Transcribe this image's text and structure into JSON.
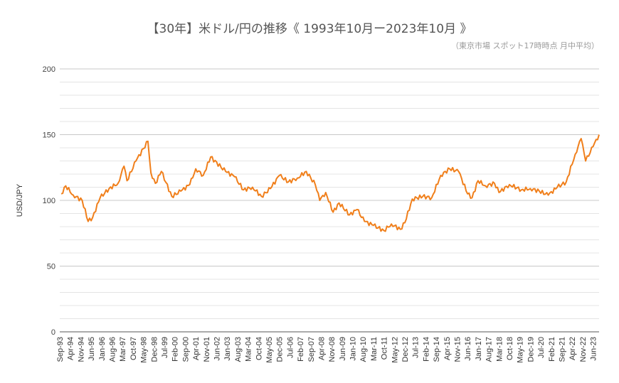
{
  "title": "【30年】米ドル/円の推移《 1993年10月ー2023年10月 》",
  "subtitle": "（東京市場 スポット17時時点 月中平均）",
  "chart_data": {
    "type": "line",
    "title": "【30年】米ドル/円の推移《 1993年10月ー2023年10月 》",
    "subtitle": "（東京市場 スポット17時時点 月中平均）",
    "xlabel": "",
    "ylabel": "USD/JPY",
    "ylim": [
      0,
      200
    ],
    "yticks": [
      0,
      50,
      100,
      150,
      200
    ],
    "minor_grid_step": 10,
    "grid": true,
    "legend": "none",
    "line_color": "#f07f1b",
    "x_tick_labels": [
      "Sep-93",
      "Apr-94",
      "Nov-94",
      "Jun-95",
      "Jan-96",
      "Aug-96",
      "Mar-97",
      "Oct-97",
      "May-98",
      "Dec-98",
      "Jul-99",
      "Feb-00",
      "Sep-00",
      "Apr-01",
      "Nov-01",
      "Jun-02",
      "Jan-03",
      "Aug-03",
      "Mar-04",
      "Oct-04",
      "May-05",
      "Dec-05",
      "Jul-06",
      "Feb-07",
      "Sep-07",
      "Apr-08",
      "Nov-08",
      "Jun-09",
      "Jan-10",
      "Aug-10",
      "Mar-11",
      "Oct-11",
      "May-12",
      "Dec-12",
      "Jul-13",
      "Feb-14",
      "Sep-14",
      "Apr-15",
      "Nov-15",
      "Jun-16",
      "Jan-17",
      "Aug-17",
      "Mar-18",
      "Oct-18",
      "May-19",
      "Dec-19",
      "Jul-20",
      "Feb-21",
      "Sep-21",
      "Apr-22",
      "Nov-22",
      "Jun-23"
    ],
    "series": [
      {
        "name": "USD/JPY",
        "yearly_points": [
          {
            "x": "Oct-93",
            "y": 105
          },
          {
            "x": "Jan-94",
            "y": 111
          },
          {
            "x": "Jun-94",
            "y": 104
          },
          {
            "x": "Dec-94",
            "y": 100
          },
          {
            "x": "Apr-95",
            "y": 84
          },
          {
            "x": "Jul-95",
            "y": 87
          },
          {
            "x": "Dec-95",
            "y": 102
          },
          {
            "x": "Jun-96",
            "y": 109
          },
          {
            "x": "Dec-96",
            "y": 113
          },
          {
            "x": "Apr-97",
            "y": 126
          },
          {
            "x": "Jun-97",
            "y": 115
          },
          {
            "x": "Dec-97",
            "y": 130
          },
          {
            "x": "Aug-98",
            "y": 145
          },
          {
            "x": "Oct-98",
            "y": 121
          },
          {
            "x": "Jan-99",
            "y": 113
          },
          {
            "x": "May-99",
            "y": 122
          },
          {
            "x": "Dec-99",
            "y": 103
          },
          {
            "x": "Jun-00",
            "y": 107
          },
          {
            "x": "Dec-00",
            "y": 112
          },
          {
            "x": "Apr-01",
            "y": 124
          },
          {
            "x": "Sep-01",
            "y": 119
          },
          {
            "x": "Feb-02",
            "y": 133
          },
          {
            "x": "Dec-02",
            "y": 122
          },
          {
            "x": "Jun-03",
            "y": 118
          },
          {
            "x": "Dec-03",
            "y": 108
          },
          {
            "x": "Jun-04",
            "y": 110
          },
          {
            "x": "Dec-04",
            "y": 103
          },
          {
            "x": "Jun-05",
            "y": 109
          },
          {
            "x": "Dec-05",
            "y": 119
          },
          {
            "x": "Jun-06",
            "y": 114
          },
          {
            "x": "Dec-06",
            "y": 117
          },
          {
            "x": "Jun-07",
            "y": 122
          },
          {
            "x": "Dec-07",
            "y": 112
          },
          {
            "x": "Mar-08",
            "y": 100
          },
          {
            "x": "Jul-08",
            "y": 106
          },
          {
            "x": "Dec-08",
            "y": 91
          },
          {
            "x": "Apr-09",
            "y": 98
          },
          {
            "x": "Nov-09",
            "y": 89
          },
          {
            "x": "Apr-10",
            "y": 93
          },
          {
            "x": "Sep-10",
            "y": 84
          },
          {
            "x": "Mar-11",
            "y": 81
          },
          {
            "x": "Oct-11",
            "y": 77
          },
          {
            "x": "Mar-12",
            "y": 82
          },
          {
            "x": "Sep-12",
            "y": 78
          },
          {
            "x": "Dec-12",
            "y": 83
          },
          {
            "x": "May-13",
            "y": 101
          },
          {
            "x": "Dec-13",
            "y": 103
          },
          {
            "x": "Jun-14",
            "y": 102
          },
          {
            "x": "Dec-14",
            "y": 119
          },
          {
            "x": "Jun-15",
            "y": 124
          },
          {
            "x": "Dec-15",
            "y": 122
          },
          {
            "x": "Jun-16",
            "y": 105
          },
          {
            "x": "Sep-16",
            "y": 102
          },
          {
            "x": "Jan-17",
            "y": 115
          },
          {
            "x": "Jun-17",
            "y": 111
          },
          {
            "x": "Dec-17",
            "y": 113
          },
          {
            "x": "Mar-18",
            "y": 106
          },
          {
            "x": "Oct-18",
            "y": 112
          },
          {
            "x": "Jun-19",
            "y": 108
          },
          {
            "x": "Dec-19",
            "y": 109
          },
          {
            "x": "Jun-20",
            "y": 107
          },
          {
            "x": "Dec-20",
            "y": 104
          },
          {
            "x": "Jun-21",
            "y": 110
          },
          {
            "x": "Dec-21",
            "y": 114
          },
          {
            "x": "Jun-22",
            "y": 135
          },
          {
            "x": "Oct-22",
            "y": 147
          },
          {
            "x": "Jan-23",
            "y": 130
          },
          {
            "x": "Jun-23",
            "y": 141
          },
          {
            "x": "Oct-23",
            "y": 150
          }
        ]
      }
    ]
  }
}
